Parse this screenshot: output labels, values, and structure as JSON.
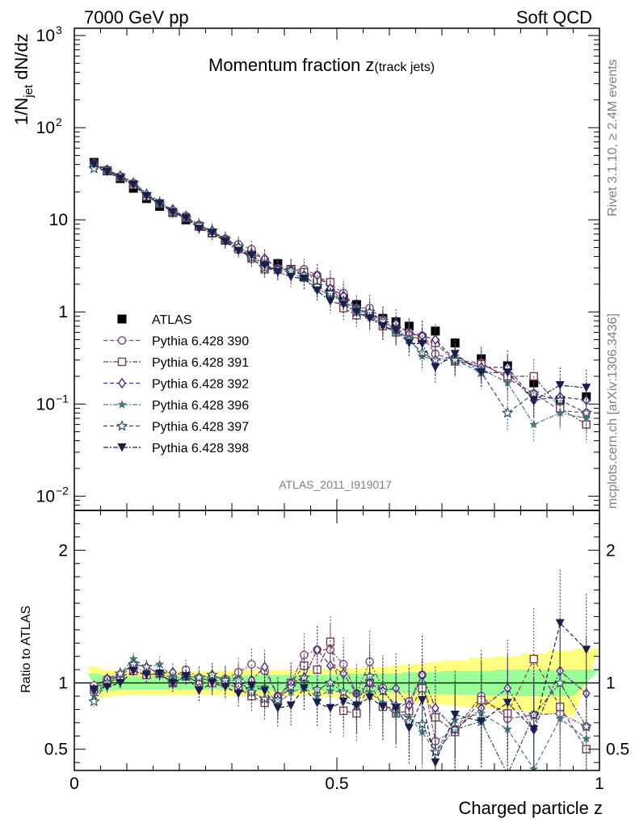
{
  "header": {
    "left": "7000 GeV pp",
    "right": "Soft QCD"
  },
  "side_text": {
    "rivet": "Rivet 3.1.10, ≥ 2.4M events",
    "mcplots": "mcplots.cern.ch [arXiv:1306.3436]"
  },
  "analysis_id": "ATLAS_2011_I919017",
  "chart_data": [
    {
      "type": "scatter",
      "panel": "main",
      "title": "Momentum fraction z(track jets)",
      "ylabel": "1/N_jet dN/dz",
      "xlabel": "",
      "xlim": [
        0,
        1
      ],
      "ylim": [
        0.007,
        1200
      ],
      "yscale": "log",
      "yticks": [
        "10^-2",
        "10^-1",
        "1",
        "10",
        "10^2",
        "10^3"
      ],
      "legend_position": "middle-left",
      "x": [
        0.0375,
        0.0625,
        0.0875,
        0.1125,
        0.1375,
        0.1625,
        0.1875,
        0.2125,
        0.2375,
        0.2625,
        0.2875,
        0.3125,
        0.3375,
        0.3625,
        0.3875,
        0.4125,
        0.4375,
        0.4625,
        0.4875,
        0.5125,
        0.5375,
        0.5625,
        0.5875,
        0.6125,
        0.6375,
        0.6625,
        0.6875,
        0.725,
        0.775,
        0.825,
        0.875,
        0.925,
        0.975
      ],
      "series": [
        {
          "name": "ATLAS",
          "marker": "square-filled",
          "color": "#000000",
          "line": false,
          "values": [
            42,
            34,
            28,
            22,
            17,
            14,
            12,
            10,
            8.5,
            7.2,
            6.0,
            5.0,
            4.2,
            3.4,
            3.35,
            2.9,
            2.4,
            2.0,
            1.6,
            1.4,
            1.2,
            0.95,
            0.85,
            0.78,
            0.7,
            0.52,
            0.62,
            0.46,
            0.31,
            0.26,
            0.17,
            0.11,
            0.12
          ]
        },
        {
          "name": "Pythia 6.428 390",
          "marker": "circle-open",
          "color": "#7a4a72",
          "line": true,
          "values": [
            41,
            35,
            29,
            25,
            18,
            15,
            12.5,
            11,
            8.8,
            7.3,
            6.2,
            5.4,
            4.8,
            3.7,
            3.0,
            2.9,
            2.9,
            2.5,
            2.0,
            1.6,
            1.1,
            1.1,
            0.82,
            0.62,
            0.6,
            0.55,
            0.35,
            0.3,
            0.28,
            0.19,
            0.13,
            0.085,
            0.08
          ]
        },
        {
          "name": "Pythia 6.428 391",
          "marker": "square-open",
          "color": "#7a3e4a",
          "line": true,
          "values": [
            40,
            34,
            29,
            24,
            18,
            15,
            12,
            10.5,
            8.5,
            7.2,
            6.0,
            4.8,
            3.8,
            2.9,
            2.9,
            2.9,
            2.7,
            2.2,
            2.1,
            1.1,
            0.92,
            0.95,
            0.7,
            0.6,
            0.55,
            0.5,
            0.46,
            0.29,
            0.27,
            0.2,
            0.2,
            0.09,
            0.06
          ]
        },
        {
          "name": "Pythia 6.428 392",
          "marker": "diamond-open",
          "color": "#4a2a7a",
          "line": true,
          "values": [
            40,
            35,
            30,
            25,
            19,
            15,
            13,
            10.5,
            8.5,
            7.6,
            6.1,
            4.9,
            4.3,
            3.8,
            3.0,
            2.9,
            2.5,
            2.5,
            1.8,
            1.5,
            1.1,
            0.95,
            0.8,
            0.75,
            0.58,
            0.55,
            0.5,
            0.3,
            0.25,
            0.25,
            0.11,
            0.12,
            0.11
          ]
        },
        {
          "name": "Pythia 6.428 396",
          "marker": "star-filled",
          "color": "#4a7a7a",
          "line": true,
          "values": [
            38,
            34,
            30,
            26,
            19,
            16,
            12.5,
            10.5,
            8.8,
            7.5,
            6.2,
            5.2,
            4.1,
            3.3,
            2.8,
            2.7,
            2.3,
            1.8,
            1.5,
            1.3,
            1.1,
            0.88,
            0.72,
            0.6,
            0.52,
            0.33,
            0.3,
            0.33,
            0.24,
            0.17,
            0.06,
            0.08,
            0.07
          ]
        },
        {
          "name": "Pythia 6.428 397",
          "marker": "star-open",
          "color": "#35506a",
          "line": true,
          "values": [
            36,
            34,
            30,
            25,
            19,
            15,
            12,
            10.5,
            8.8,
            7.6,
            6.1,
            5.1,
            3.9,
            3.0,
            2.9,
            2.8,
            2.5,
            1.9,
            1.6,
            1.3,
            1.0,
            1.0,
            0.8,
            0.65,
            0.5,
            0.36,
            0.3,
            0.3,
            0.22,
            0.08,
            0.13,
            0.11,
            0.08
          ]
        },
        {
          "name": "Pythia 6.428 398",
          "marker": "triangle-down-filled",
          "color": "#1a1f4a",
          "line": true,
          "values": [
            40,
            33,
            28,
            24,
            18,
            15,
            12,
            10.5,
            8.0,
            7.2,
            5.8,
            4.6,
            4.1,
            3.2,
            2.7,
            2.4,
            2.3,
            1.7,
            1.3,
            1.2,
            1.0,
            0.85,
            0.7,
            0.63,
            0.46,
            0.45,
            0.25,
            0.35,
            0.22,
            0.22,
            0.11,
            0.16,
            0.15
          ]
        }
      ]
    },
    {
      "type": "scatter",
      "panel": "ratio",
      "title": "",
      "ylabel": "Ratio to ATLAS",
      "xlabel": "Charged particle z",
      "xlim": [
        0,
        1
      ],
      "ylim": [
        0.34,
        2.3
      ],
      "xticks": [
        "0",
        "0.5",
        "1"
      ],
      "yticks": [
        "0.5",
        "1",
        "2"
      ],
      "x": [
        0.0375,
        0.0625,
        0.0875,
        0.1125,
        0.1375,
        0.1625,
        0.1875,
        0.2125,
        0.2375,
        0.2625,
        0.2875,
        0.3125,
        0.3375,
        0.3625,
        0.3875,
        0.4125,
        0.4375,
        0.4625,
        0.4875,
        0.5125,
        0.5375,
        0.5625,
        0.5875,
        0.6125,
        0.6375,
        0.6625,
        0.6875,
        0.725,
        0.775,
        0.825,
        0.875,
        0.925,
        0.975
      ],
      "band_inner": {
        "color": "#99ff99",
        "values": [
          0.07,
          0.06,
          0.05,
          0.05,
          0.05,
          0.05,
          0.05,
          0.05,
          0.05,
          0.05,
          0.05,
          0.05,
          0.06,
          0.06,
          0.06,
          0.06,
          0.06,
          0.06,
          0.06,
          0.07,
          0.07,
          0.07,
          0.07,
          0.07,
          0.08,
          0.08,
          0.08,
          0.09,
          0.09,
          0.1,
          0.1,
          0.1,
          0.1
        ]
      },
      "band_outer": {
        "color": "#ffff80",
        "values": [
          0.12,
          0.1,
          0.09,
          0.09,
          0.09,
          0.09,
          0.09,
          0.09,
          0.09,
          0.09,
          0.09,
          0.1,
          0.1,
          0.1,
          0.1,
          0.1,
          0.1,
          0.1,
          0.11,
          0.11,
          0.11,
          0.12,
          0.12,
          0.13,
          0.14,
          0.15,
          0.16,
          0.17,
          0.19,
          0.2,
          0.22,
          0.24,
          0.26
        ]
      },
      "series": [
        {
          "name": "Pythia 6.428 390",
          "marker": "circle-open",
          "color": "#7a4a72",
          "values": [
            0.98,
            1.03,
            1.04,
            1.14,
            1.06,
            1.07,
            1.04,
            1.1,
            1.04,
            1.01,
            1.03,
            1.08,
            1.14,
            1.09,
            0.9,
            1.0,
            1.21,
            1.25,
            1.25,
            1.14,
            0.92,
            1.16,
            0.96,
            0.8,
            0.86,
            1.06,
            0.56,
            0.65,
            0.9,
            0.73,
            0.76,
            0.77,
            0.67
          ]
        },
        {
          "name": "Pythia 6.428 391",
          "marker": "square-open",
          "color": "#7a3e4a",
          "values": [
            0.95,
            1.0,
            1.04,
            1.09,
            1.06,
            1.07,
            1.0,
            1.05,
            1.0,
            1.0,
            1.0,
            0.96,
            0.9,
            0.85,
            0.87,
            1.0,
            1.13,
            1.1,
            1.31,
            0.79,
            0.77,
            1.0,
            0.82,
            0.77,
            0.79,
            0.96,
            0.74,
            0.63,
            0.87,
            0.77,
            1.18,
            0.82,
            0.5
          ]
        },
        {
          "name": "Pythia 6.428 392",
          "marker": "diamond-open",
          "color": "#4a2a7a",
          "values": [
            0.95,
            1.03,
            1.07,
            1.14,
            1.12,
            1.07,
            1.08,
            1.05,
            1.0,
            1.06,
            1.02,
            0.98,
            1.02,
            1.12,
            0.9,
            1.0,
            1.04,
            1.25,
            1.13,
            1.07,
            0.92,
            1.0,
            0.94,
            0.96,
            0.83,
            1.06,
            0.81,
            0.65,
            0.81,
            0.96,
            0.65,
            1.09,
            0.92
          ]
        },
        {
          "name": "Pythia 6.428 396",
          "marker": "star-filled",
          "color": "#4a7a7a",
          "values": [
            0.9,
            1.0,
            1.07,
            1.18,
            1.12,
            1.14,
            1.04,
            1.05,
            1.04,
            1.04,
            1.03,
            1.04,
            0.98,
            0.97,
            0.84,
            0.93,
            0.96,
            0.9,
            0.94,
            0.93,
            0.92,
            0.93,
            0.85,
            0.77,
            0.74,
            0.63,
            0.48,
            0.72,
            0.77,
            0.65,
            0.35,
            0.73,
            0.58
          ]
        },
        {
          "name": "Pythia 6.428 397",
          "marker": "star-open",
          "color": "#35506a",
          "values": [
            0.86,
            1.0,
            1.07,
            1.14,
            1.12,
            1.07,
            1.0,
            1.05,
            1.04,
            1.06,
            1.02,
            1.02,
            0.93,
            0.88,
            0.87,
            0.97,
            1.04,
            0.95,
            1.0,
            0.93,
            0.83,
            1.05,
            0.94,
            0.83,
            0.71,
            0.69,
            0.48,
            0.65,
            0.71,
            0.31,
            0.76,
            1.0,
            0.67
          ]
        },
        {
          "name": "Pythia 6.428 398",
          "marker": "triangle-down-filled",
          "color": "#1a1f4a",
          "values": [
            0.95,
            0.97,
            1.0,
            1.09,
            1.06,
            1.07,
            1.0,
            1.05,
            0.94,
            1.0,
            0.97,
            0.92,
            0.98,
            0.94,
            0.81,
            0.83,
            0.96,
            0.85,
            0.81,
            0.86,
            0.83,
            0.89,
            0.82,
            0.81,
            0.66,
            0.87,
            0.4,
            0.76,
            0.71,
            0.85,
            0.65,
            1.45,
            1.25
          ]
        }
      ]
    }
  ]
}
